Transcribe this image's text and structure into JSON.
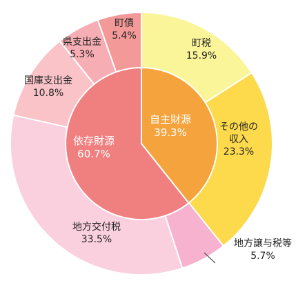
{
  "chart_data": {
    "type": "pie",
    "inner_ring": [
      {
        "name": "自主財源",
        "value": 39.3,
        "value_label": "39.3%",
        "color": "#F5A33C",
        "text_color": "#ffffff"
      },
      {
        "name": "依存財源",
        "value": 60.7,
        "value_label": "60.7%",
        "color": "#F08080",
        "text_color": "#ffffff"
      }
    ],
    "outer_ring": [
      {
        "name": "町税",
        "value": 15.9,
        "value_label": "15.9%",
        "color": "#FBF59A"
      },
      {
        "name": "その他の\n収入",
        "value": 23.3,
        "value_label": "23.3%",
        "color": "#FDD94C"
      },
      {
        "name": "地方譲与税等",
        "value": 5.7,
        "value_label": "5.7%",
        "color": "#F7B2CF"
      },
      {
        "name": "地方交付税",
        "value": 33.5,
        "value_label": "33.5%",
        "color": "#FAD0DE"
      },
      {
        "name": "国庫支出金",
        "value": 10.8,
        "value_label": "10.8%",
        "color": "#F9C3C8"
      },
      {
        "name": "県支出金",
        "value": 5.3,
        "value_label": "5.3%",
        "color": "#F6AEB4"
      },
      {
        "name": "町債",
        "value": 5.4,
        "value_label": "5.4%",
        "color": "#F39A98"
      }
    ]
  }
}
